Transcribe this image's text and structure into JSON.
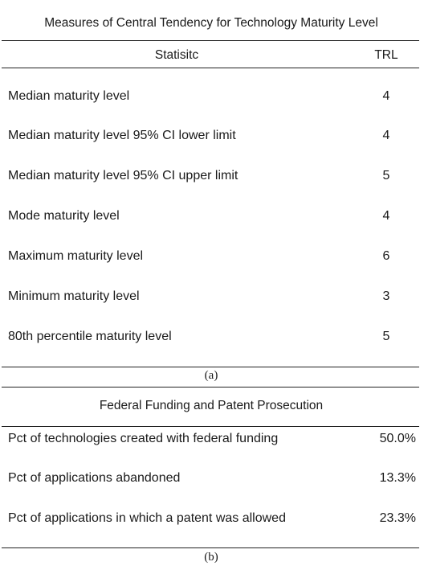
{
  "table_a": {
    "title": "Measures of Central Tendency for Technology Maturity Level",
    "header": {
      "statistic": "Statisitc",
      "value": "TRL"
    },
    "rows": [
      {
        "label": "Median maturity level",
        "value": "4"
      },
      {
        "label": "Median maturity level 95% CI lower limit",
        "value": "4"
      },
      {
        "label": "Median maturity level 95% CI upper limit",
        "value": "5"
      },
      {
        "label": "Mode maturity level",
        "value": "4"
      },
      {
        "label": "Maximum maturity level",
        "value": "6"
      },
      {
        "label": "Minimum maturity level",
        "value": "3"
      },
      {
        "label": "80th percentile maturity level",
        "value": "5"
      }
    ],
    "caption": "(a)"
  },
  "table_b": {
    "title": "Federal Funding and Patent Prosecution",
    "rows": [
      {
        "label": "Pct of technologies created with federal funding",
        "value": "50.0%"
      },
      {
        "label": "Pct of applications abandoned",
        "value": "13.3%"
      },
      {
        "label": "Pct of applications in which a patent was allowed",
        "value": "23.3%"
      }
    ],
    "caption": "(b)"
  }
}
